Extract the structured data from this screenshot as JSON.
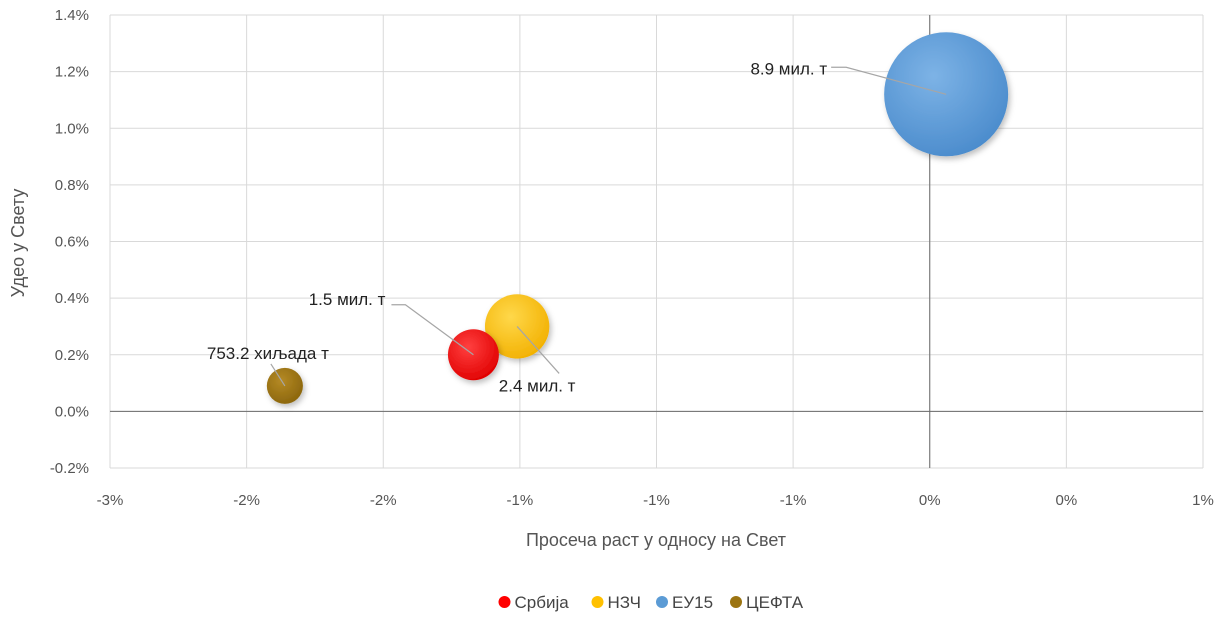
{
  "chart_data": {
    "type": "bubble",
    "title": "",
    "xlabel": "Просеча раст у односу на Свет",
    "ylabel": "Удео у Свету",
    "xlim": [
      -3,
      1
    ],
    "ylim": [
      -0.2,
      1.4
    ],
    "x_ticks": [
      -3,
      -2.5,
      -2,
      -1.5,
      -1,
      -0.5,
      0,
      0.5,
      1
    ],
    "x_tick_labels": [
      "-3%",
      "-2%",
      "-2%",
      "-1%",
      "-1%",
      "-1%",
      "0%",
      "0%",
      "1%"
    ],
    "y_ticks": [
      -0.2,
      0,
      0.2,
      0.4,
      0.6,
      0.8,
      1.0,
      1.2,
      1.4
    ],
    "y_tick_labels": [
      "-0.2%",
      "0.0%",
      "0.2%",
      "0.4%",
      "0.6%",
      "0.8%",
      "1.0%",
      "1.2%",
      "1.4%"
    ],
    "grid": true,
    "legend_position": "bottom",
    "series": [
      {
        "name": "Србија",
        "x": -1.67,
        "y": 0.2,
        "size": 1.5,
        "color": "#ff0000",
        "label": "1.5 мил. т"
      },
      {
        "name": "НЗЧ",
        "x": -1.51,
        "y": 0.3,
        "size": 2.4,
        "color": "#ffc000",
        "label": "2.4  мил. т"
      },
      {
        "name": "ЕУ15",
        "x": 0.06,
        "y": 1.12,
        "size": 8.9,
        "color": "#5b9bd5",
        "label": "8.9  мил. т"
      },
      {
        "name": "ЦЕФТА",
        "x": -2.36,
        "y": 0.09,
        "size": 0.7532,
        "color": "#9c7411",
        "label": "753.2 хиљада т"
      }
    ]
  }
}
